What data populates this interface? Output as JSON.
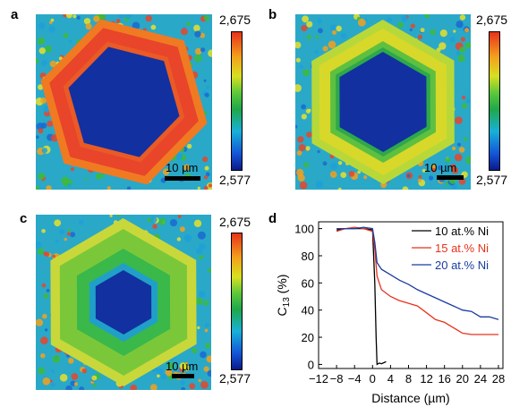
{
  "panels": {
    "a": {
      "letter": "a",
      "cbar_max": "2,675",
      "cbar_min": "2,577",
      "scale": "10 µm",
      "rim": "#e8452a",
      "core": "#1230a0"
    },
    "b": {
      "letter": "b",
      "cbar_max": "2,675",
      "cbar_min": "2,577",
      "scale": "10 µm",
      "rim": "#d8d82a",
      "core": "#1230a0"
    },
    "c": {
      "letter": "c",
      "cbar_max": "2,675",
      "cbar_min": "2,577",
      "scale": "10 µm",
      "rim": "#7ac83a",
      "core": "#1230a0"
    },
    "d": {
      "letter": "d"
    }
  },
  "chart_data": {
    "type": "line",
    "xlabel": "Distance (µm)",
    "ylabel_main": "C",
    "ylabel_sub": "13",
    "ylabel_rest": " (%)",
    "xlim": [
      -12,
      29
    ],
    "ylim": [
      -3,
      105
    ],
    "xticks": [
      -12,
      -8,
      -4,
      0,
      4,
      8,
      12,
      16,
      20,
      24,
      28
    ],
    "xtick_labels": [
      "−12",
      "−8",
      "−4",
      "0",
      "4",
      "8",
      "12",
      "16",
      "20",
      "24",
      "28"
    ],
    "yticks": [
      0,
      20,
      40,
      60,
      80,
      100
    ],
    "ytick_labels": [
      "0",
      "20",
      "40",
      "60",
      "80",
      "100"
    ],
    "legend_position": "top-right",
    "series": [
      {
        "name": "10 at.% Ni",
        "color": "#000000",
        "x": [
          -8,
          -6,
          -4,
          -2,
          0,
          0.5,
          0.8,
          1.0,
          1.5,
          2,
          3
        ],
        "y": [
          99,
          100,
          100,
          100,
          99,
          60,
          20,
          0,
          1,
          0.5,
          2
        ]
      },
      {
        "name": "15 at.% Ni",
        "color": "#e8321c",
        "x": [
          -8,
          -6,
          -4,
          -2,
          0,
          0.5,
          1,
          2,
          4,
          6,
          8,
          10,
          12,
          14,
          16,
          18,
          20,
          22,
          24,
          26,
          28
        ],
        "y": [
          98,
          100,
          101,
          100,
          98,
          85,
          65,
          55,
          50,
          47,
          45,
          43,
          38,
          33,
          31,
          27,
          23,
          22,
          22,
          22,
          22
        ]
      },
      {
        "name": "20 at.% Ni",
        "color": "#1a3ca0",
        "x": [
          -8,
          -6,
          -4,
          -2,
          0,
          0.5,
          1,
          2,
          4,
          6,
          8,
          10,
          12,
          14,
          16,
          18,
          20,
          22,
          24,
          26,
          28
        ],
        "y": [
          100,
          100,
          100,
          101,
          100,
          90,
          75,
          70,
          66,
          62,
          59,
          55,
          52,
          49,
          46,
          43,
          40,
          39,
          35,
          35,
          33
        ]
      }
    ]
  }
}
